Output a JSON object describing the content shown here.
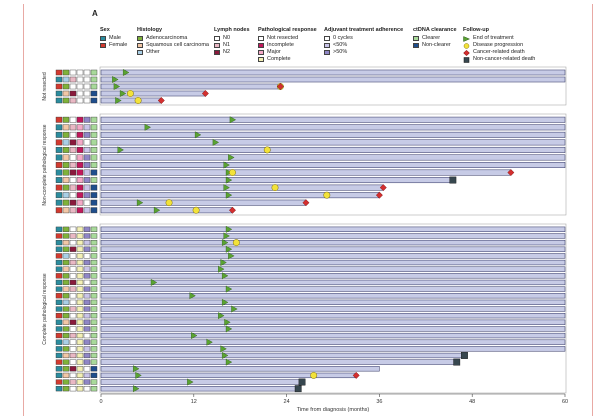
{
  "panel_label": "A",
  "legend": {
    "sex": {
      "title": "Sex",
      "items": [
        {
          "label": "Male",
          "color": "#2b8c9e"
        },
        {
          "label": "Female",
          "color": "#d23a2f"
        }
      ]
    },
    "histology": {
      "title": "Histology",
      "items": [
        {
          "label": "Adenocarcinoma",
          "color": "#7fb23a"
        },
        {
          "label": "Squamous cell carcinoma",
          "color": "#f2c7a6"
        },
        {
          "label": "Other",
          "color": "#a9cfe6"
        }
      ]
    },
    "lymph": {
      "title": "Lymph nodes",
      "items": [
        {
          "label": "N0",
          "color": "#ffffff"
        },
        {
          "label": "N1",
          "color": "#e9b8c4"
        },
        {
          "label": "N2",
          "color": "#8a1a3c"
        }
      ]
    },
    "path": {
      "title": "Pathological response",
      "items": [
        {
          "label": "Not resected",
          "color": "#ffffff"
        },
        {
          "label": "Incomplete",
          "color": "#c2185b"
        },
        {
          "label": "Major",
          "color": "#f4a9c7"
        },
        {
          "label": "Complete",
          "color": "#f3f0b5"
        }
      ]
    },
    "adjuvant": {
      "title": "Adjuvant treatment adherence",
      "items": [
        {
          "label": "0 cycles",
          "color": "#ffffff"
        },
        {
          "label": "<50%",
          "color": "#c9c4e8"
        },
        {
          "label": ">50%",
          "color": "#8f86c6"
        }
      ]
    },
    "ctdna": {
      "title": "ctDNA clearance",
      "items": [
        {
          "label": "Clearer",
          "color": "#a8d99a"
        },
        {
          "label": "Non-clearer",
          "color": "#1f4e8c"
        }
      ]
    },
    "followup": {
      "title": "Follow-up",
      "items": [
        {
          "label": "End of treatment",
          "icon": "green-triangle-icon"
        },
        {
          "label": "Disease progression",
          "icon": "yellow-circle-icon"
        },
        {
          "label": "Cancer-related death",
          "icon": "red-diamond-icon"
        },
        {
          "label": "Non-cancer-related death",
          "icon": "dark-square-icon"
        }
      ]
    }
  },
  "chart_data": {
    "type": "swimmer",
    "xlabel": "Time from diagnosis (months)",
    "xlim": [
      0,
      60
    ],
    "xticks": [
      0,
      12,
      24,
      36,
      48,
      60
    ],
    "colors": {
      "bar_fill": "#c7cbe6",
      "bar_stroke": "#2c3060",
      "eot": "#5aa332",
      "progression": "#f2e23a",
      "cancer_death": "#d32f2f",
      "other_death": "#37474f"
    },
    "groups": [
      {
        "name": "Not resected",
        "patients": [
          {
            "end": 60,
            "eot": 3.2,
            "prog": null,
            "cd": null,
            "od": null,
            "cov": [
              "F",
              "A",
              "N0",
              "NR",
              "0",
              "C"
            ]
          },
          {
            "end": 60,
            "eot": 1.8,
            "prog": null,
            "cd": null,
            "od": null,
            "cov": [
              "M",
              "O",
              "N1",
              "NR",
              "0",
              "C"
            ]
          },
          {
            "end": 23.2,
            "eot": 2.0,
            "prog": 23.2,
            "cd": 23.2,
            "od": null,
            "cov": [
              "F",
              "A",
              "N0",
              "NR",
              "0",
              "C"
            ]
          },
          {
            "end": 13.5,
            "eot": 2.8,
            "prog": 3.8,
            "cd": 13.5,
            "od": null,
            "cov": [
              "M",
              "S",
              "N2",
              "NR",
              "0",
              "N"
            ]
          },
          {
            "end": 7.8,
            "eot": 2.2,
            "prog": 4.8,
            "cd": 7.8,
            "od": null,
            "cov": [
              "M",
              "A",
              "N1",
              "NR",
              "0",
              "N"
            ]
          }
        ]
      },
      {
        "name": "Non-complete pathological response",
        "patients": [
          {
            "end": 60,
            "eot": 17.0,
            "prog": null,
            "cd": null,
            "od": null,
            "cov": [
              "F",
              "A",
              "N0",
              "I",
              "H",
              "C"
            ]
          },
          {
            "end": 60,
            "eot": 6.0,
            "prog": null,
            "cd": null,
            "od": null,
            "cov": [
              "M",
              "S",
              "N1",
              "M",
              "L",
              "C"
            ]
          },
          {
            "end": 60,
            "eot": 12.5,
            "prog": null,
            "cd": null,
            "od": null,
            "cov": [
              "M",
              "A",
              "N0",
              "I",
              "H",
              "C"
            ]
          },
          {
            "end": 60,
            "eot": 14.8,
            "prog": null,
            "cd": null,
            "od": null,
            "cov": [
              "F",
              "O",
              "N2",
              "M",
              "0",
              "C"
            ]
          },
          {
            "end": 60,
            "eot": 2.5,
            "prog": 21.5,
            "cd": null,
            "od": null,
            "cov": [
              "M",
              "A",
              "N1",
              "I",
              "L",
              "C"
            ]
          },
          {
            "end": 60,
            "eot": 16.8,
            "prog": null,
            "cd": null,
            "od": null,
            "cov": [
              "M",
              "S",
              "N0",
              "M",
              "H",
              "C"
            ]
          },
          {
            "end": 60,
            "eot": 16.2,
            "prog": null,
            "cd": null,
            "od": null,
            "cov": [
              "F",
              "A",
              "N1",
              "I",
              "H",
              "C"
            ]
          },
          {
            "end": 53,
            "eot": 16.5,
            "prog": 17.0,
            "cd": 53,
            "od": null,
            "cov": [
              "M",
              "A",
              "N2",
              "I",
              "L",
              "N"
            ]
          },
          {
            "end": 45.5,
            "eot": 16.5,
            "prog": null,
            "cd": null,
            "od": 45.5,
            "cov": [
              "M",
              "S",
              "N0",
              "M",
              "H",
              "C"
            ]
          },
          {
            "end": 36.5,
            "eot": 16.2,
            "prog": 22.5,
            "cd": 36.5,
            "od": null,
            "cov": [
              "F",
              "A",
              "N1",
              "I",
              "L",
              "N"
            ]
          },
          {
            "end": 36.0,
            "eot": 16.5,
            "prog": 29.2,
            "cd": 36.0,
            "od": null,
            "cov": [
              "M",
              "O",
              "N0",
              "I",
              "H",
              "N"
            ]
          },
          {
            "end": 26.5,
            "eot": 5.0,
            "prog": 8.8,
            "cd": 26.5,
            "od": null,
            "cov": [
              "M",
              "A",
              "N2",
              "M",
              "0",
              "N"
            ]
          },
          {
            "end": 17.0,
            "eot": 7.2,
            "prog": 12.3,
            "cd": 17.0,
            "od": null,
            "cov": [
              "F",
              "S",
              "N1",
              "I",
              "L",
              "N"
            ]
          }
        ]
      },
      {
        "name": "Complete pathological response",
        "patients": [
          {
            "end": 60,
            "eot": 16.5,
            "prog": null,
            "cd": null,
            "od": null,
            "cov": [
              "M",
              "A",
              "N0",
              "C",
              "H",
              "C"
            ]
          },
          {
            "end": 60,
            "eot": 16.2,
            "prog": null,
            "cd": null,
            "od": null,
            "cov": [
              "F",
              "A",
              "N1",
              "C",
              "H",
              "C"
            ]
          },
          {
            "end": 60,
            "eot": 16.0,
            "prog": 17.5,
            "cd": null,
            "od": null,
            "cov": [
              "M",
              "S",
              "N0",
              "C",
              "L",
              "C"
            ]
          },
          {
            "end": 60,
            "eot": 16.5,
            "prog": null,
            "cd": null,
            "od": null,
            "cov": [
              "M",
              "A",
              "N2",
              "C",
              "H",
              "C"
            ]
          },
          {
            "end": 60,
            "eot": 16.8,
            "prog": null,
            "cd": null,
            "od": null,
            "cov": [
              "F",
              "O",
              "N0",
              "C",
              "0",
              "C"
            ]
          },
          {
            "end": 60,
            "eot": 15.8,
            "prog": null,
            "cd": null,
            "od": null,
            "cov": [
              "M",
              "A",
              "N1",
              "C",
              "H",
              "C"
            ]
          },
          {
            "end": 60,
            "eot": 15.5,
            "prog": null,
            "cd": null,
            "od": null,
            "cov": [
              "M",
              "S",
              "N0",
              "C",
              "L",
              "C"
            ]
          },
          {
            "end": 60,
            "eot": 16.0,
            "prog": null,
            "cd": null,
            "od": null,
            "cov": [
              "F",
              "A",
              "N0",
              "C",
              "H",
              "C"
            ]
          },
          {
            "end": 60,
            "eot": 6.8,
            "prog": null,
            "cd": null,
            "od": null,
            "cov": [
              "M",
              "A",
              "N2",
              "C",
              "0",
              "C"
            ]
          },
          {
            "end": 60,
            "eot": 16.5,
            "prog": null,
            "cd": null,
            "od": null,
            "cov": [
              "M",
              "S",
              "N1",
              "C",
              "H",
              "C"
            ]
          },
          {
            "end": 60,
            "eot": 11.8,
            "prog": null,
            "cd": null,
            "od": null,
            "cov": [
              "F",
              "A",
              "N0",
              "C",
              "L",
              "C"
            ]
          },
          {
            "end": 60,
            "eot": 16.0,
            "prog": null,
            "cd": null,
            "od": null,
            "cov": [
              "M",
              "O",
              "N0",
              "C",
              "H",
              "C"
            ]
          },
          {
            "end": 60,
            "eot": 17.2,
            "prog": null,
            "cd": null,
            "od": null,
            "cov": [
              "M",
              "A",
              "N1",
              "C",
              "H",
              "C"
            ]
          },
          {
            "end": 60,
            "eot": 15.5,
            "prog": null,
            "cd": null,
            "od": null,
            "cov": [
              "F",
              "A",
              "N0",
              "C",
              "L",
              "C"
            ]
          },
          {
            "end": 60,
            "eot": 16.3,
            "prog": null,
            "cd": null,
            "od": null,
            "cov": [
              "M",
              "S",
              "N2",
              "C",
              "H",
              "C"
            ]
          },
          {
            "end": 60,
            "eot": 16.5,
            "prog": null,
            "cd": null,
            "od": null,
            "cov": [
              "M",
              "A",
              "N0",
              "C",
              "H",
              "C"
            ]
          },
          {
            "end": 60,
            "eot": 12.0,
            "prog": null,
            "cd": null,
            "od": null,
            "cov": [
              "F",
              "A",
              "N1",
              "C",
              "0",
              "C"
            ]
          },
          {
            "end": 60,
            "eot": 14.0,
            "prog": null,
            "cd": null,
            "od": null,
            "cov": [
              "M",
              "O",
              "N0",
              "C",
              "H",
              "C"
            ]
          },
          {
            "end": 60,
            "eot": 15.8,
            "prog": null,
            "cd": null,
            "od": null,
            "cov": [
              "M",
              "A",
              "N0",
              "C",
              "L",
              "C"
            ]
          },
          {
            "end": 47.0,
            "eot": 16.0,
            "prog": null,
            "cd": null,
            "od": 47.0,
            "cov": [
              "M",
              "S",
              "N1",
              "C",
              "H",
              "C"
            ]
          },
          {
            "end": 46.0,
            "eot": 16.5,
            "prog": null,
            "cd": null,
            "od": 46.0,
            "cov": [
              "F",
              "A",
              "N0",
              "C",
              "H",
              "C"
            ]
          },
          {
            "end": 36.0,
            "eot": 4.5,
            "prog": null,
            "cd": null,
            "od": null,
            "cov": [
              "M",
              "A",
              "N2",
              "C",
              "0",
              "N"
            ]
          },
          {
            "end": 33.0,
            "eot": 4.8,
            "prog": 27.5,
            "cd": 33.0,
            "od": null,
            "cov": [
              "M",
              "S",
              "N0",
              "C",
              "L",
              "N"
            ]
          },
          {
            "end": 26.0,
            "eot": 11.5,
            "prog": null,
            "cd": null,
            "od": 26.0,
            "cov": [
              "F",
              "A",
              "N1",
              "C",
              "H",
              "C"
            ]
          },
          {
            "end": 25.5,
            "eot": 4.5,
            "prog": null,
            "cd": null,
            "od": 25.5,
            "cov": [
              "M",
              "A",
              "N0",
              "C",
              "0",
              "C"
            ]
          }
        ]
      }
    ]
  }
}
